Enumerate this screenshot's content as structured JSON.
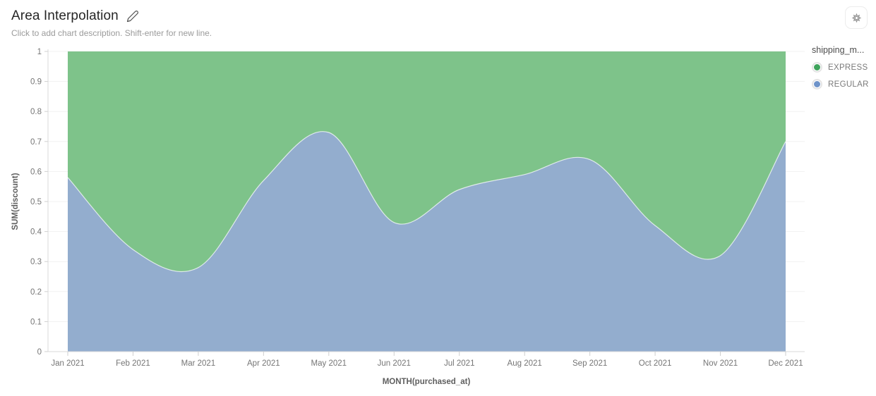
{
  "header": {
    "title": "Area Interpolation",
    "description_placeholder": "Click to add chart description. Shift-enter for new line."
  },
  "toolbar": {
    "icons": {
      "edit": "pencil-icon",
      "settings": "gear-icon"
    }
  },
  "chart_data": {
    "type": "area",
    "stacked": true,
    "normalized_to_one": true,
    "interpolation": "smooth",
    "title": "Area Interpolation",
    "xlabel": "MONTH(purchased_at)",
    "ylabel": "SUM(discount)",
    "ylim": [
      0,
      1
    ],
    "grid": "horizontal",
    "x": [
      "Jan 2021",
      "Feb 2021",
      "Mar 2021",
      "Apr 2021",
      "May 2021",
      "Jun 2021",
      "Jul 2021",
      "Aug 2021",
      "Sep 2021",
      "Oct 2021",
      "Nov 2021",
      "Dec 2021"
    ],
    "y_tick_labels": [
      "0",
      "0.1",
      "0.2",
      "0.3",
      "0.4",
      "0.5",
      "0.6",
      "0.7",
      "0.8",
      "0.9",
      "1"
    ],
    "series": [
      {
        "name": "EXPRESS",
        "dot_color": "#3FA45C",
        "fill_color": "#7EC38A",
        "values": [
          0.42,
          0.66,
          0.72,
          0.43,
          0.27,
          0.57,
          0.46,
          0.41,
          0.36,
          0.58,
          0.68,
          0.3
        ]
      },
      {
        "name": "REGULAR",
        "dot_color": "#6E93C9",
        "fill_color": "#93ADCE",
        "values": [
          0.58,
          0.34,
          0.28,
          0.57,
          0.73,
          0.43,
          0.54,
          0.59,
          0.64,
          0.42,
          0.32,
          0.7
        ]
      }
    ],
    "legend": {
      "title": "shipping_m...",
      "position": "right"
    },
    "colors": {
      "axis_line": "#d9d9d9",
      "grid_line": "#f1f1f1",
      "tick": "#cfcfcf",
      "tick_label": "#757575",
      "axis_title": "#5f5f5f"
    }
  }
}
